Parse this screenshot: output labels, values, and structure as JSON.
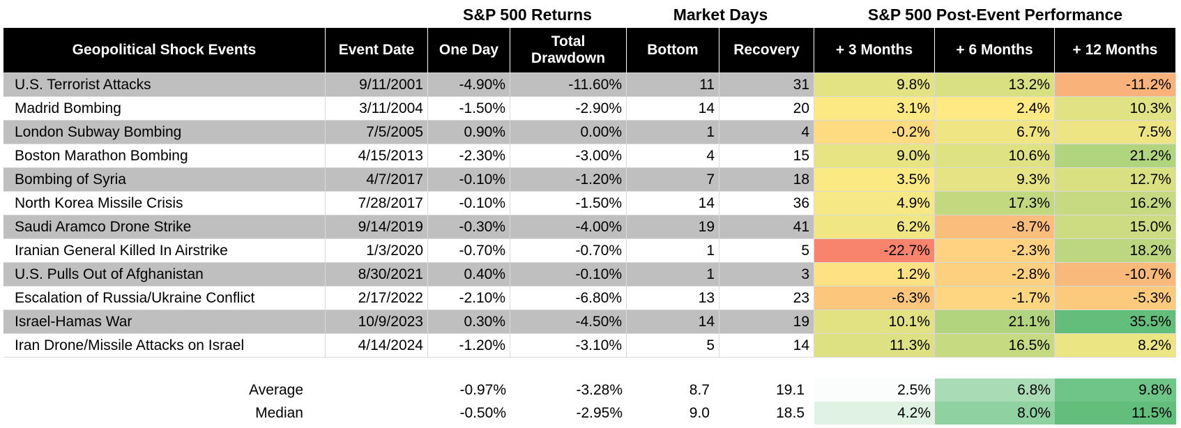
{
  "group_headers": [
    "S&P 500 Returns",
    "Market Days",
    "S&P 500 Post-Event Performance"
  ],
  "table": {
    "columns": [
      "Geopolitical Shock Events",
      "Event Date",
      "One Day",
      "Total Drawdown",
      "Bottom",
      "Recovery",
      "+ 3 Months",
      "+ 6 Months",
      "+ 12 Months"
    ],
    "rows": [
      [
        "U.S. Terrorist Attacks",
        "9/11/2001",
        "-4.90%",
        "-11.60%",
        "11",
        "31",
        "9.8%",
        "13.2%",
        "-11.2%"
      ],
      [
        "Madrid Bombing",
        "3/11/2004",
        "-1.50%",
        "-2.90%",
        "14",
        "20",
        "3.1%",
        "2.4%",
        "10.3%"
      ],
      [
        "London Subway Bombing",
        "7/5/2005",
        "0.90%",
        "0.00%",
        "1",
        "4",
        "-0.2%",
        "6.7%",
        "7.5%"
      ],
      [
        "Boston Marathon Bombing",
        "4/15/2013",
        "-2.30%",
        "-3.00%",
        "4",
        "15",
        "9.0%",
        "10.6%",
        "21.2%"
      ],
      [
        "Bombing of Syria",
        "4/7/2017",
        "-0.10%",
        "-1.20%",
        "7",
        "18",
        "3.5%",
        "9.3%",
        "12.7%"
      ],
      [
        "North Korea Missile Crisis",
        "7/28/2017",
        "-0.10%",
        "-1.50%",
        "14",
        "36",
        "4.9%",
        "17.3%",
        "16.2%"
      ],
      [
        "Saudi Aramco Drone Strike",
        "9/14/2019",
        "-0.30%",
        "-4.00%",
        "19",
        "41",
        "6.2%",
        "-8.7%",
        "15.0%"
      ],
      [
        "Iranian General Killed In Airstrike",
        "1/3/2020",
        "-0.70%",
        "-0.70%",
        "1",
        "5",
        "-22.7%",
        "-2.3%",
        "18.2%"
      ],
      [
        "U.S. Pulls Out of Afghanistan",
        "8/30/2021",
        "0.40%",
        "-0.10%",
        "1",
        "3",
        "1.2%",
        "-2.8%",
        "-10.7%"
      ],
      [
        "Escalation of Russia/Ukraine Conflict",
        "2/17/2022",
        "-2.10%",
        "-6.80%",
        "13",
        "23",
        "-6.3%",
        "-1.7%",
        "-5.3%"
      ],
      [
        "Israel-Hamas War",
        "10/9/2023",
        "0.30%",
        "-4.50%",
        "14",
        "19",
        "10.1%",
        "21.1%",
        "35.5%"
      ],
      [
        "Iran Drone/Missile Attacks on Israel",
        "4/14/2024",
        "-1.20%",
        "-3.10%",
        "5",
        "14",
        "11.3%",
        "16.5%",
        "8.2%"
      ]
    ],
    "heat_colors": [
      [
        "#e4e383",
        "#d9e082",
        "#f8b27a"
      ],
      [
        "#fde984",
        "#fee983",
        "#e1e283"
      ],
      [
        "#fedb81",
        "#f0e583",
        "#ede583"
      ],
      [
        "#e6e483",
        "#dfe283",
        "#b1d47f"
      ],
      [
        "#fbe983",
        "#e5e383",
        "#d8e082"
      ],
      [
        "#f6e884",
        "#c3d980",
        "#c7da81"
      ],
      [
        "#f1e684",
        "#fbbd7b",
        "#cddb81"
      ],
      [
        "#f8846e",
        "#fed280",
        "#bcd780"
      ],
      [
        "#fee182",
        "#fdd07f",
        "#f9b97a"
      ],
      [
        "#fcc67d",
        "#fed580",
        "#fcca7d"
      ],
      [
        "#e2e283",
        "#b2d47f",
        "#63be7b"
      ],
      [
        "#dde182",
        "#c6da81",
        "#ebe583"
      ]
    ]
  },
  "summary": {
    "rows": [
      [
        "Average",
        "-0.97%",
        "-3.28%",
        "8.7",
        "19.1",
        "2.5%",
        "6.8%",
        "9.8%"
      ],
      [
        "Median",
        "-0.50%",
        "-2.95%",
        "9.0",
        "18.5",
        "4.2%",
        "8.0%",
        "11.5%"
      ]
    ],
    "heat_colors": [
      [
        "#fbfdfc",
        "#a9dcb5",
        "#6fc487"
      ],
      [
        "#e0f2e4",
        "#8fd1a0",
        "#63be7b"
      ]
    ]
  }
}
